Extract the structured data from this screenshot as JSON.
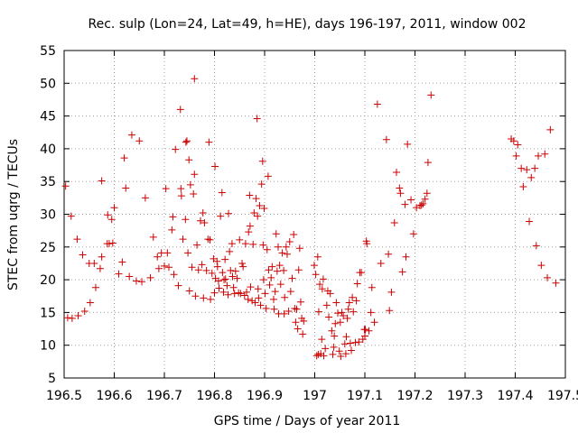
{
  "chart_data": {
    "type": "scatter",
    "title": "Rec. sulp (Lon=24, Lat=49, h=HE), days 196-197, 2011, window 002",
    "xlabel": "GPS time / Days of year 2011",
    "ylabel": "STEC from uqrg / TECUs",
    "xlim": [
      196.5,
      197.5
    ],
    "ylim": [
      5,
      55
    ],
    "xticks": [
      196.5,
      196.6,
      196.7,
      196.8,
      196.9,
      197,
      197.1,
      197.2,
      197.3,
      197.4,
      197.5
    ],
    "xtick_labels": [
      "196.5",
      "196.6",
      "196.7",
      "196.8",
      "196.9",
      "197",
      "197.1",
      "197.2",
      "197.3",
      "197.4",
      "197.5"
    ],
    "yticks": [
      5,
      10,
      15,
      20,
      25,
      30,
      35,
      40,
      45,
      50,
      55
    ],
    "ytick_labels": [
      "5",
      "10",
      "15",
      "20",
      "25",
      "30",
      "35",
      "40",
      "45",
      "50",
      "55"
    ],
    "grid": true,
    "marker": "+",
    "color": "#cc0000",
    "points": [
      [
        196.503,
        34.3
      ],
      [
        196.507,
        14.2
      ],
      [
        196.514,
        29.7
      ],
      [
        196.516,
        14.1
      ],
      [
        196.526,
        26.2
      ],
      [
        196.528,
        14.5
      ],
      [
        196.537,
        23.8
      ],
      [
        196.541,
        15.2
      ],
      [
        196.55,
        22.5
      ],
      [
        196.552,
        16.5
      ],
      [
        196.56,
        22.5
      ],
      [
        196.563,
        18.8
      ],
      [
        196.572,
        21.7
      ],
      [
        196.575,
        23.5
      ],
      [
        196.575,
        35.1
      ],
      [
        196.586,
        25.5
      ],
      [
        196.587,
        29.9
      ],
      [
        196.59,
        25.5
      ],
      [
        196.595,
        29.2
      ],
      [
        196.597,
        25.6
      ],
      [
        196.6,
        31.0
      ],
      [
        196.609,
        20.9
      ],
      [
        196.616,
        22.7
      ],
      [
        196.62,
        38.6
      ],
      [
        196.623,
        34.0
      ],
      [
        196.63,
        20.5
      ],
      [
        196.635,
        42.1
      ],
      [
        196.644,
        19.8
      ],
      [
        196.65,
        41.2
      ],
      [
        196.655,
        19.7
      ],
      [
        196.662,
        32.5
      ],
      [
        196.672,
        20.3
      ],
      [
        196.678,
        26.5
      ],
      [
        196.686,
        23.5
      ],
      [
        196.689,
        21.7
      ],
      [
        196.694,
        24.1
      ],
      [
        196.7,
        22.1
      ],
      [
        196.703,
        33.9
      ],
      [
        196.706,
        24.1
      ],
      [
        196.709,
        21.9
      ],
      [
        196.715,
        27.6
      ],
      [
        196.717,
        29.6
      ],
      [
        196.719,
        20.8
      ],
      [
        196.722,
        39.9
      ],
      [
        196.728,
        19.1
      ],
      [
        196.732,
        46.0
      ],
      [
        196.733,
        33.9
      ],
      [
        196.734,
        32.8
      ],
      [
        196.737,
        26.2
      ],
      [
        196.742,
        29.2
      ],
      [
        196.743,
        41.0
      ],
      [
        196.745,
        41.2
      ],
      [
        196.747,
        24.1
      ],
      [
        196.749,
        38.3
      ],
      [
        196.75,
        18.3
      ],
      [
        196.752,
        34.5
      ],
      [
        196.755,
        21.9
      ],
      [
        196.758,
        33.1
      ],
      [
        196.76,
        36.1
      ],
      [
        196.76,
        50.7
      ],
      [
        196.762,
        17.5
      ],
      [
        196.765,
        25.3
      ],
      [
        196.768,
        21.5
      ],
      [
        196.772,
        29.0
      ],
      [
        196.775,
        22.3
      ],
      [
        196.777,
        30.2
      ],
      [
        196.778,
        17.2
      ],
      [
        196.78,
        28.7
      ],
      [
        196.784,
        21.4
      ],
      [
        196.787,
        26.2
      ],
      [
        196.789,
        41.0
      ],
      [
        196.791,
        26.1
      ],
      [
        196.792,
        17.0
      ],
      [
        196.795,
        21.0
      ],
      [
        196.798,
        23.2
      ],
      [
        196.8,
        18.0
      ],
      [
        196.801,
        37.3
      ],
      [
        196.802,
        20.2
      ],
      [
        196.805,
        22.8
      ],
      [
        196.806,
        22.0
      ],
      [
        196.808,
        19.8
      ],
      [
        196.809,
        18.7
      ],
      [
        196.812,
        29.7
      ],
      [
        196.815,
        33.3
      ],
      [
        196.816,
        21.1
      ],
      [
        196.818,
        18.1
      ],
      [
        196.819,
        20.0
      ],
      [
        196.821,
        23.1
      ],
      [
        196.822,
        20.1
      ],
      [
        196.825,
        19.1
      ],
      [
        196.827,
        17.7
      ],
      [
        196.828,
        30.1
      ],
      [
        196.83,
        24.3
      ],
      [
        196.832,
        21.4
      ],
      [
        196.835,
        25.5
      ],
      [
        196.836,
        20.5
      ],
      [
        196.838,
        18.8
      ],
      [
        196.84,
        17.9
      ],
      [
        196.842,
        21.3
      ],
      [
        196.845,
        20.2
      ],
      [
        196.848,
        18.0
      ],
      [
        196.85,
        26.1
      ],
      [
        196.852,
        17.9
      ],
      [
        196.855,
        22.5
      ],
      [
        196.857,
        22.0
      ],
      [
        196.86,
        17.6
      ],
      [
        196.862,
        25.5
      ],
      [
        196.864,
        18.1
      ],
      [
        196.867,
        17.0
      ],
      [
        196.868,
        27.3
      ],
      [
        196.87,
        32.9
      ],
      [
        196.871,
        28.2
      ],
      [
        196.872,
        18.9
      ],
      [
        196.875,
        16.8
      ],
      [
        196.877,
        25.4
      ],
      [
        196.879,
        30.2
      ],
      [
        196.881,
        16.5
      ],
      [
        196.883,
        32.4
      ],
      [
        196.885,
        44.6
      ],
      [
        196.886,
        29.7
      ],
      [
        196.887,
        18.6
      ],
      [
        196.888,
        17.2
      ],
      [
        196.89,
        31.3
      ],
      [
        196.892,
        16.1
      ],
      [
        196.894,
        34.6
      ],
      [
        196.896,
        38.1
      ],
      [
        196.897,
        25.3
      ],
      [
        196.898,
        20.0
      ],
      [
        196.899,
        30.9
      ],
      [
        196.901,
        17.9
      ],
      [
        196.903,
        15.6
      ],
      [
        196.905,
        24.6
      ],
      [
        196.907,
        35.8
      ],
      [
        196.908,
        21.5
      ],
      [
        196.91,
        19.2
      ],
      [
        196.913,
        20.3
      ],
      [
        196.915,
        22.0
      ],
      [
        196.918,
        17.0
      ],
      [
        196.919,
        15.5
      ],
      [
        196.921,
        18.2
      ],
      [
        196.923,
        27.0
      ],
      [
        196.925,
        21.3
      ],
      [
        196.927,
        25.0
      ],
      [
        196.928,
        14.8
      ],
      [
        196.93,
        22.2
      ],
      [
        196.932,
        19.3
      ],
      [
        196.935,
        24.1
      ],
      [
        196.938,
        21.4
      ],
      [
        196.939,
        14.8
      ],
      [
        196.94,
        17.3
      ],
      [
        196.943,
        25.0
      ],
      [
        196.945,
        23.9
      ],
      [
        196.948,
        15.2
      ],
      [
        196.95,
        25.8
      ],
      [
        196.952,
        18.2
      ],
      [
        196.955,
        20.2
      ],
      [
        196.958,
        26.9
      ],
      [
        196.96,
        15.6
      ],
      [
        196.962,
        13.5
      ],
      [
        196.964,
        15.5
      ],
      [
        196.966,
        12.5
      ],
      [
        196.968,
        21.5
      ],
      [
        196.97,
        24.8
      ],
      [
        196.972,
        16.6
      ],
      [
        196.974,
        14.1
      ],
      [
        196.976,
        11.7
      ],
      [
        196.978,
        13.7
      ],
      [
        196.999,
        22.2
      ],
      [
        197.002,
        20.8
      ],
      [
        197.004,
        8.4
      ],
      [
        197.006,
        23.5
      ],
      [
        197.007,
        8.6
      ],
      [
        197.008,
        15.1
      ],
      [
        197.01,
        19.3
      ],
      [
        197.012,
        8.7
      ],
      [
        197.014,
        10.9
      ],
      [
        197.015,
        18.6
      ],
      [
        197.017,
        20.1
      ],
      [
        197.018,
        8.4
      ],
      [
        197.021,
        9.5
      ],
      [
        197.024,
        16.1
      ],
      [
        197.026,
        18.3
      ],
      [
        197.028,
        14.3
      ],
      [
        197.031,
        17.9
      ],
      [
        197.034,
        12.2
      ],
      [
        197.036,
        8.6
      ],
      [
        197.038,
        9.7
      ],
      [
        197.039,
        11.4
      ],
      [
        197.041,
        13.3
      ],
      [
        197.043,
        16.5
      ],
      [
        197.046,
        14.9
      ],
      [
        197.049,
        9.1
      ],
      [
        197.051,
        13.5
      ],
      [
        197.052,
        8.3
      ],
      [
        197.054,
        15.0
      ],
      [
        197.057,
        14.5
      ],
      [
        197.06,
        10.2
      ],
      [
        197.062,
        8.7
      ],
      [
        197.063,
        11.3
      ],
      [
        197.065,
        14.1
      ],
      [
        197.067,
        15.5
      ],
      [
        197.069,
        16.5
      ],
      [
        197.071,
        10.3
      ],
      [
        197.073,
        9.2
      ],
      [
        197.075,
        17.3
      ],
      [
        197.077,
        15.1
      ],
      [
        197.081,
        10.4
      ],
      [
        197.083,
        16.8
      ],
      [
        197.085,
        19.4
      ],
      [
        197.088,
        10.5
      ],
      [
        197.09,
        21.1
      ],
      [
        197.093,
        21.1
      ],
      [
        197.096,
        10.9
      ],
      [
        197.099,
        12.4
      ],
      [
        197.1,
        11.4
      ],
      [
        197.101,
        12.4
      ],
      [
        197.103,
        25.9
      ],
      [
        197.104,
        25.5
      ],
      [
        197.108,
        12.2
      ],
      [
        197.112,
        15.0
      ],
      [
        197.114,
        18.8
      ],
      [
        197.119,
        13.5
      ],
      [
        197.125,
        46.8
      ],
      [
        197.132,
        22.5
      ],
      [
        197.143,
        41.4
      ],
      [
        197.147,
        23.9
      ],
      [
        197.149,
        15.3
      ],
      [
        197.153,
        18.1
      ],
      [
        197.159,
        28.7
      ],
      [
        197.163,
        36.4
      ],
      [
        197.169,
        34.0
      ],
      [
        197.171,
        33.2
      ],
      [
        197.175,
        21.2
      ],
      [
        197.18,
        31.5
      ],
      [
        197.182,
        23.5
      ],
      [
        197.185,
        40.7
      ],
      [
        197.192,
        32.2
      ],
      [
        197.197,
        27.0
      ],
      [
        197.203,
        31.0
      ],
      [
        197.21,
        31.3
      ],
      [
        197.213,
        31.4
      ],
      [
        197.216,
        31.6
      ],
      [
        197.22,
        32.3
      ],
      [
        197.224,
        33.2
      ],
      [
        197.226,
        37.9
      ],
      [
        197.232,
        48.2
      ],
      [
        197.392,
        41.5
      ],
      [
        197.397,
        41.2
      ],
      [
        197.402,
        38.9
      ],
      [
        197.405,
        40.6
      ],
      [
        197.412,
        37.0
      ],
      [
        197.416,
        34.2
      ],
      [
        197.423,
        36.8
      ],
      [
        197.428,
        28.9
      ],
      [
        197.432,
        35.6
      ],
      [
        197.439,
        37.0
      ],
      [
        197.442,
        25.2
      ],
      [
        197.446,
        38.9
      ],
      [
        197.452,
        22.2
      ],
      [
        197.459,
        39.2
      ],
      [
        197.464,
        20.3
      ],
      [
        197.47,
        42.9
      ],
      [
        197.481,
        19.5
      ]
    ]
  }
}
